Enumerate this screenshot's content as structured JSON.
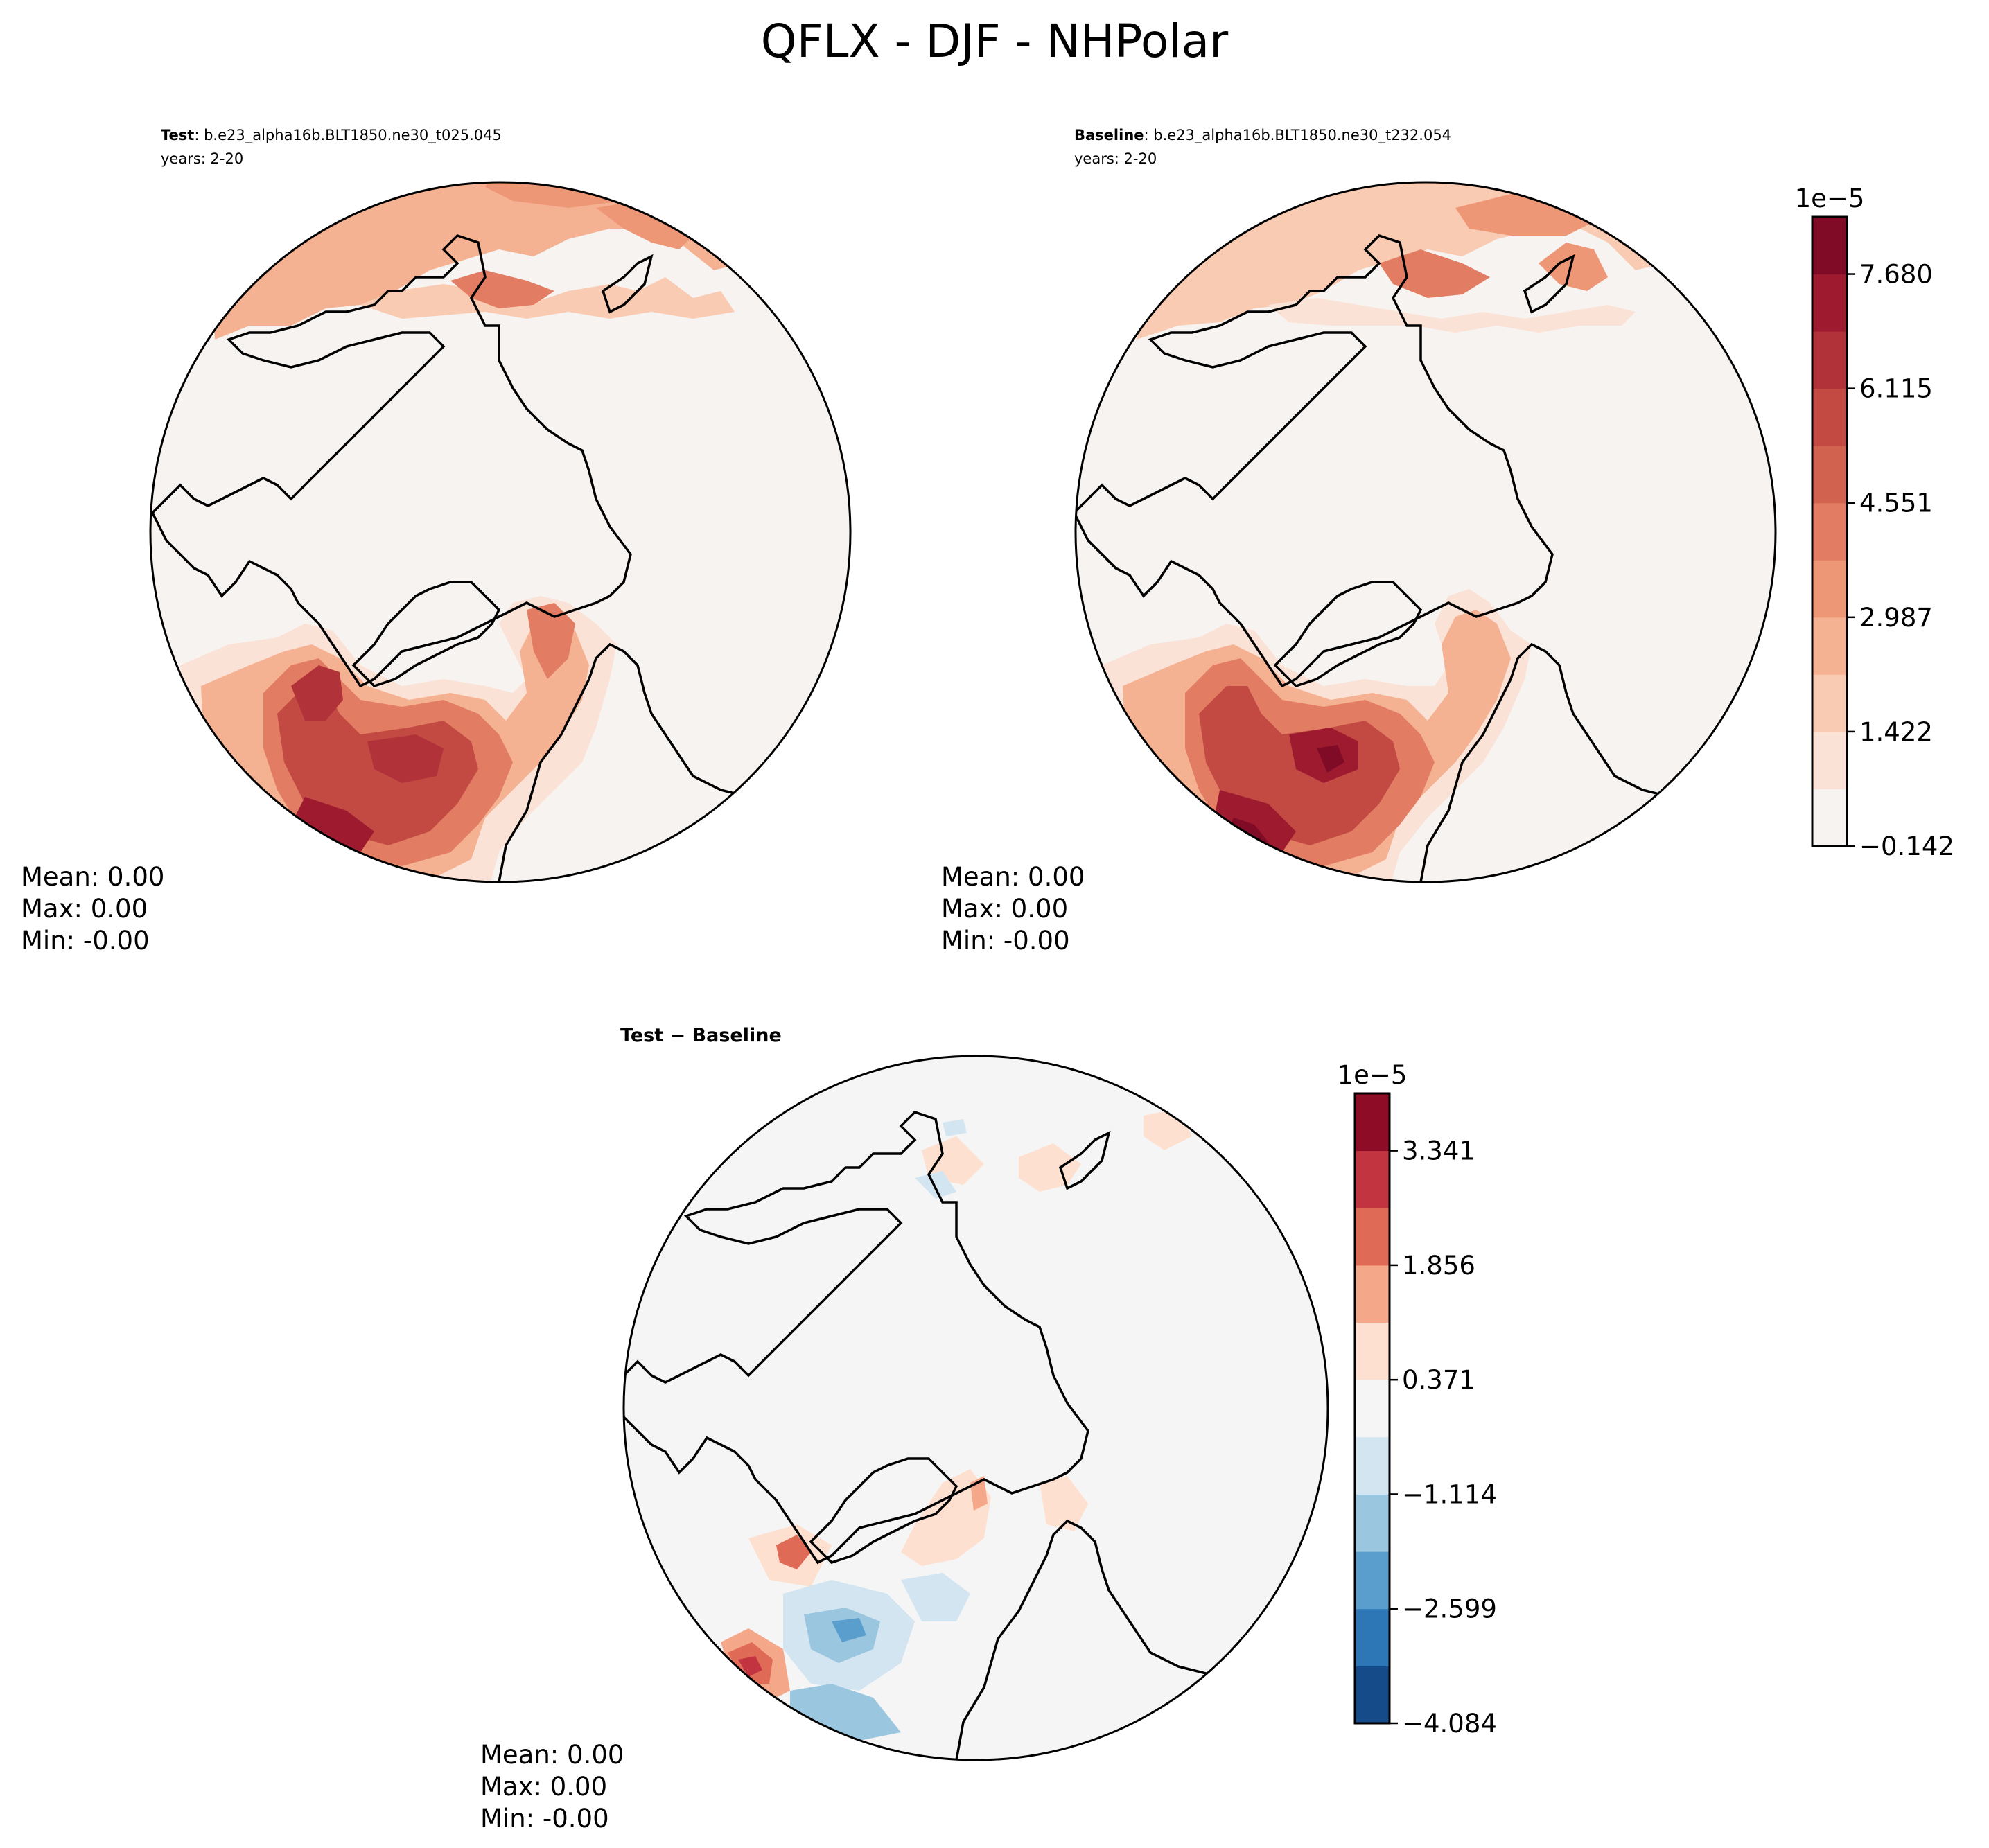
{
  "figure": {
    "title": "QFLX - DJF - NHPolar"
  },
  "panels": [
    {
      "id": "test",
      "label_bold": "Test",
      "label_rest": ": b.e23_alpha16b.BLT1850.ne30_t025.045",
      "years": "years: 2-20",
      "stats": {
        "mean": "Mean:  0.00",
        "max": "Max:  0.00",
        "min": "Min: -0.00"
      }
    },
    {
      "id": "baseline",
      "label_bold": "Baseline",
      "label_rest": ": b.e23_alpha16b.BLT1850.ne30_t232.054",
      "years": "years: 2-20",
      "stats": {
        "mean": "Mean:  0.00",
        "max": "Max:  0.00",
        "min": "Min: -0.00"
      }
    },
    {
      "id": "diff",
      "label_bold": "Test − Baseline",
      "label_rest": "",
      "years": "",
      "stats": {
        "mean": "Mean:  0.00",
        "max": "Max:  0.00",
        "min": "Min: -0.00"
      }
    }
  ],
  "colorbars": [
    {
      "id": "top",
      "exponent": "1e−5",
      "ticks": [
        "−0.142",
        "1.422",
        "2.987",
        "4.551",
        "6.115",
        "7.680"
      ],
      "tick_levels": [
        0,
        2,
        4,
        6,
        8,
        10
      ],
      "levels_count": 11,
      "colors": [
        "#f7f3f1",
        "#fbe2d6",
        "#f9cbb3",
        "#f5b293",
        "#ee9777",
        "#e27d63",
        "#d1624f",
        "#c24a43",
        "#b23239",
        "#9e1b2f",
        "#800b26"
      ]
    },
    {
      "id": "diff",
      "exponent": "1e−5",
      "ticks": [
        "−4.084",
        "−2.599",
        "−1.114",
        "0.371",
        "1.856",
        "3.341"
      ],
      "tick_levels": [
        0,
        2,
        4,
        6,
        8,
        10
      ],
      "levels_count": 11,
      "colors": [
        "#154b88",
        "#2e77b6",
        "#5a9ecd",
        "#9bc6e0",
        "#d3e5f1",
        "#f5f5f5",
        "#fde0d0",
        "#f5a789",
        "#df6a55",
        "#c23540",
        "#8e0c25"
      ]
    }
  ]
}
